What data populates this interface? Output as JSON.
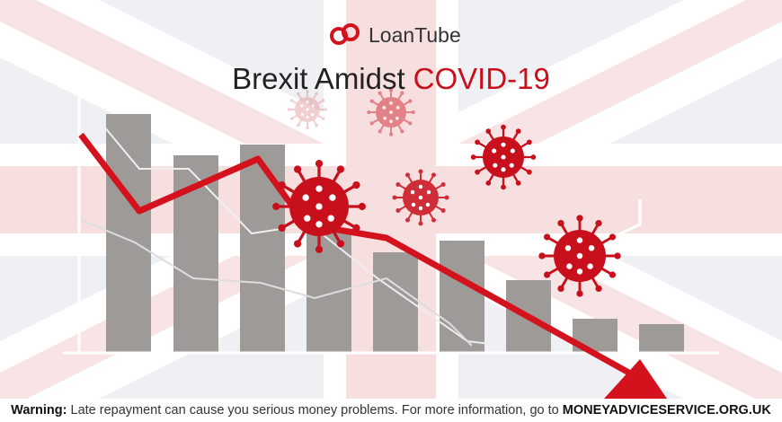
{
  "logo": {
    "text": "LoanTube"
  },
  "title": {
    "part1": "Brexit Amidst",
    "part2": "COVID-19"
  },
  "warning": {
    "label": "Warning:",
    "text": "Late repayment can cause you serious money problems. For more information, go to",
    "link": "MONEYADVICESERVICE.ORG.UK"
  }
}
